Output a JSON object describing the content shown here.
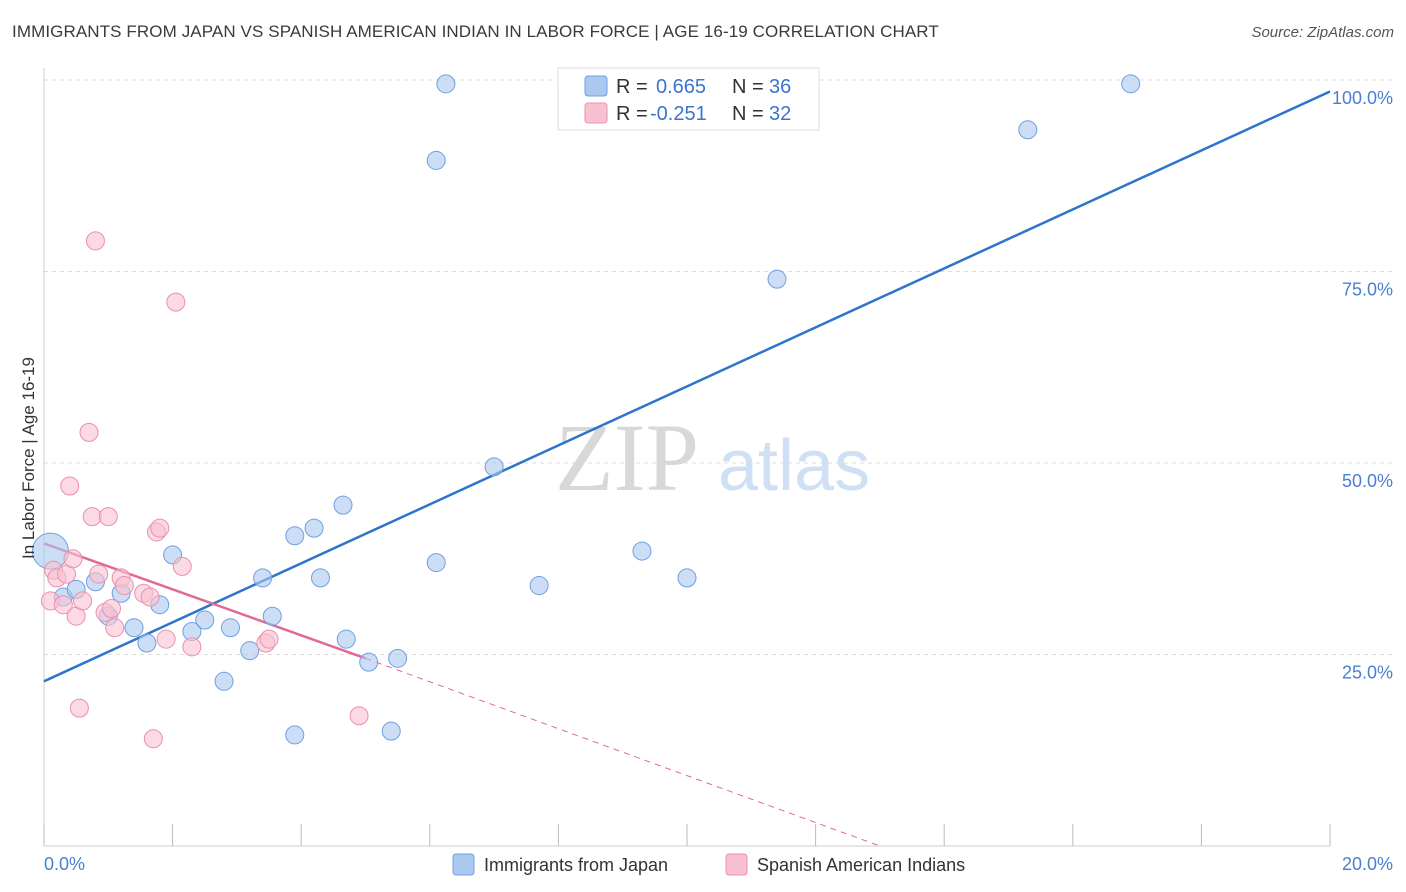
{
  "header": {
    "title": "IMMIGRANTS FROM JAPAN VS SPANISH AMERICAN INDIAN IN LABOR FORCE | AGE 16-19 CORRELATION CHART",
    "source": "Source: ZipAtlas.com"
  },
  "watermark": {
    "zip": "ZIP",
    "atlas": "atlas"
  },
  "stats": [
    {
      "r_label": "R =",
      "r_value": "0.665",
      "n_label": "N =",
      "n_value": "36",
      "color": "#aac8f0",
      "stroke": "#6f9fe0"
    },
    {
      "r_label": "R =",
      "r_value": "-0.251",
      "n_label": "N =",
      "n_value": "32",
      "color": "#f8c1d2",
      "stroke": "#ec8fac"
    }
  ],
  "chart_data": {
    "type": "scatter",
    "title": "IMMIGRANTS FROM JAPAN VS SPANISH AMERICAN INDIAN IN LABOR FORCE | AGE 16-19 CORRELATION CHART",
    "xlabel": "",
    "ylabel": "In Labor Force | Age 16-19",
    "xlim": [
      0,
      20
    ],
    "ylim": [
      0,
      100
    ],
    "x_tick_labels": [
      "0.0%",
      "20.0%"
    ],
    "y_tick_labels": [
      "25.0%",
      "50.0%",
      "75.0%",
      "100.0%"
    ],
    "y_ticks": [
      25,
      50,
      75,
      100
    ],
    "legend_position": "bottom",
    "series": [
      {
        "name": "Immigrants from Japan",
        "color": "#aac8f0",
        "stroke": "#6f9fe0",
        "line_color": "#2f74cc",
        "trend": {
          "x0": 0,
          "y0": 21.5,
          "x1": 20,
          "y1": 98.5
        },
        "points": [
          [
            0.1,
            38.5
          ],
          [
            0.3,
            32.5
          ],
          [
            0.5,
            33.5
          ],
          [
            0.8,
            34.5
          ],
          [
            1.0,
            30
          ],
          [
            1.2,
            33
          ],
          [
            1.4,
            28.5
          ],
          [
            1.6,
            26.5
          ],
          [
            1.8,
            31.5
          ],
          [
            2.0,
            38
          ],
          [
            2.3,
            28
          ],
          [
            2.5,
            29.5
          ],
          [
            2.9,
            28.5
          ],
          [
            2.8,
            21.5
          ],
          [
            3.2,
            25.5
          ],
          [
            3.4,
            35
          ],
          [
            3.55,
            30
          ],
          [
            3.9,
            14.5
          ],
          [
            3.9,
            40.5
          ],
          [
            4.2,
            41.5
          ],
          [
            4.3,
            35
          ],
          [
            4.65,
            44.5
          ],
          [
            4.7,
            27
          ],
          [
            5.05,
            24
          ],
          [
            5.4,
            15
          ],
          [
            5.5,
            24.5
          ],
          [
            6.1,
            37
          ],
          [
            6.1,
            89.5
          ],
          [
            6.25,
            99.5
          ],
          [
            7.0,
            49.5
          ],
          [
            7.7,
            34
          ],
          [
            9.3,
            38.5
          ],
          [
            10.0,
            35
          ],
          [
            11.4,
            74
          ],
          [
            15.3,
            93.5
          ],
          [
            16.9,
            99.5
          ]
        ]
      },
      {
        "name": "Spanish American Indians",
        "color": "#f8c1d2",
        "stroke": "#ec8fac",
        "line_color": "#e06a93",
        "trend": {
          "x0": 0,
          "y0": 39.5,
          "x1": 5.0,
          "y1": 24.5
        },
        "trend_ext": {
          "x0": 5.0,
          "y0": 24.5,
          "x1": 13.0,
          "y1": 0
        },
        "points": [
          [
            0.1,
            32
          ],
          [
            0.15,
            36
          ],
          [
            0.2,
            35
          ],
          [
            0.3,
            31.5
          ],
          [
            0.35,
            35.5
          ],
          [
            0.4,
            47
          ],
          [
            0.45,
            37.5
          ],
          [
            0.5,
            30
          ],
          [
            0.55,
            18
          ],
          [
            0.6,
            32
          ],
          [
            0.7,
            54
          ],
          [
            0.75,
            43
          ],
          [
            0.8,
            79
          ],
          [
            0.85,
            35.5
          ],
          [
            0.95,
            30.5
          ],
          [
            1.0,
            43
          ],
          [
            1.05,
            31
          ],
          [
            1.1,
            28.5
          ],
          [
            1.2,
            35
          ],
          [
            1.25,
            34
          ],
          [
            1.55,
            33
          ],
          [
            1.65,
            32.5
          ],
          [
            1.7,
            14
          ],
          [
            1.75,
            41
          ],
          [
            1.8,
            41.5
          ],
          [
            1.9,
            27
          ],
          [
            2.05,
            71
          ],
          [
            2.15,
            36.5
          ],
          [
            2.3,
            26
          ],
          [
            3.45,
            26.5
          ],
          [
            3.5,
            27
          ],
          [
            4.9,
            17
          ]
        ]
      }
    ]
  }
}
